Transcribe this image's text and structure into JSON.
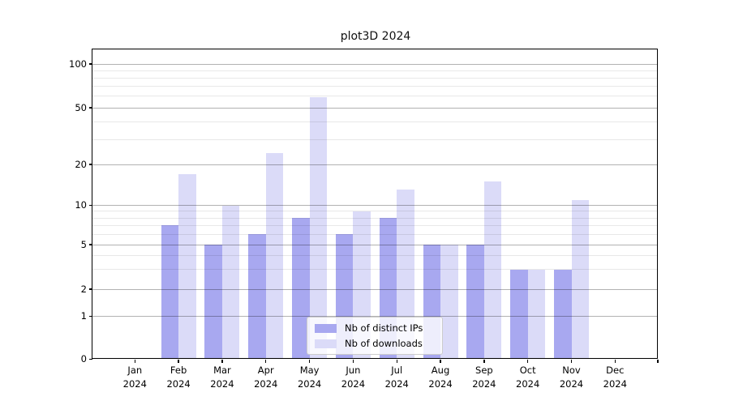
{
  "chart_data": {
    "type": "bar",
    "title": "plot3D 2024",
    "categories": [
      "Jan",
      "Feb",
      "Mar",
      "Apr",
      "May",
      "Jun",
      "Jul",
      "Aug",
      "Sep",
      "Oct",
      "Nov",
      "Dec"
    ],
    "category_year": "2024",
    "series": [
      {
        "name": "Nb of distinct IPs",
        "color": "#a8a8f0",
        "values": [
          0,
          7,
          5,
          6,
          8,
          6,
          8,
          5,
          5,
          3,
          3,
          0
        ]
      },
      {
        "name": "Nb of downloads",
        "color": "#dbdbf8",
        "values": [
          0,
          17,
          10,
          24,
          59,
          9,
          13,
          5,
          15,
          3,
          11,
          0
        ]
      }
    ],
    "xlabel": "",
    "ylabel": "",
    "y_axis": {
      "scale": "asinh-log",
      "major_ticks": [
        0,
        1,
        2,
        5,
        10,
        20,
        50,
        100
      ],
      "minor_gridlines": [
        3,
        4,
        6,
        7,
        8,
        9,
        30,
        40,
        60,
        70,
        80,
        90
      ],
      "ylim": [
        0,
        150
      ]
    },
    "grid": true,
    "legend_position": "lower center",
    "colors": {
      "major_gridline": "#b3b3b3",
      "minor_gridline": "#e8e8e8",
      "axis": "#000000",
      "background": "#ffffff"
    }
  }
}
